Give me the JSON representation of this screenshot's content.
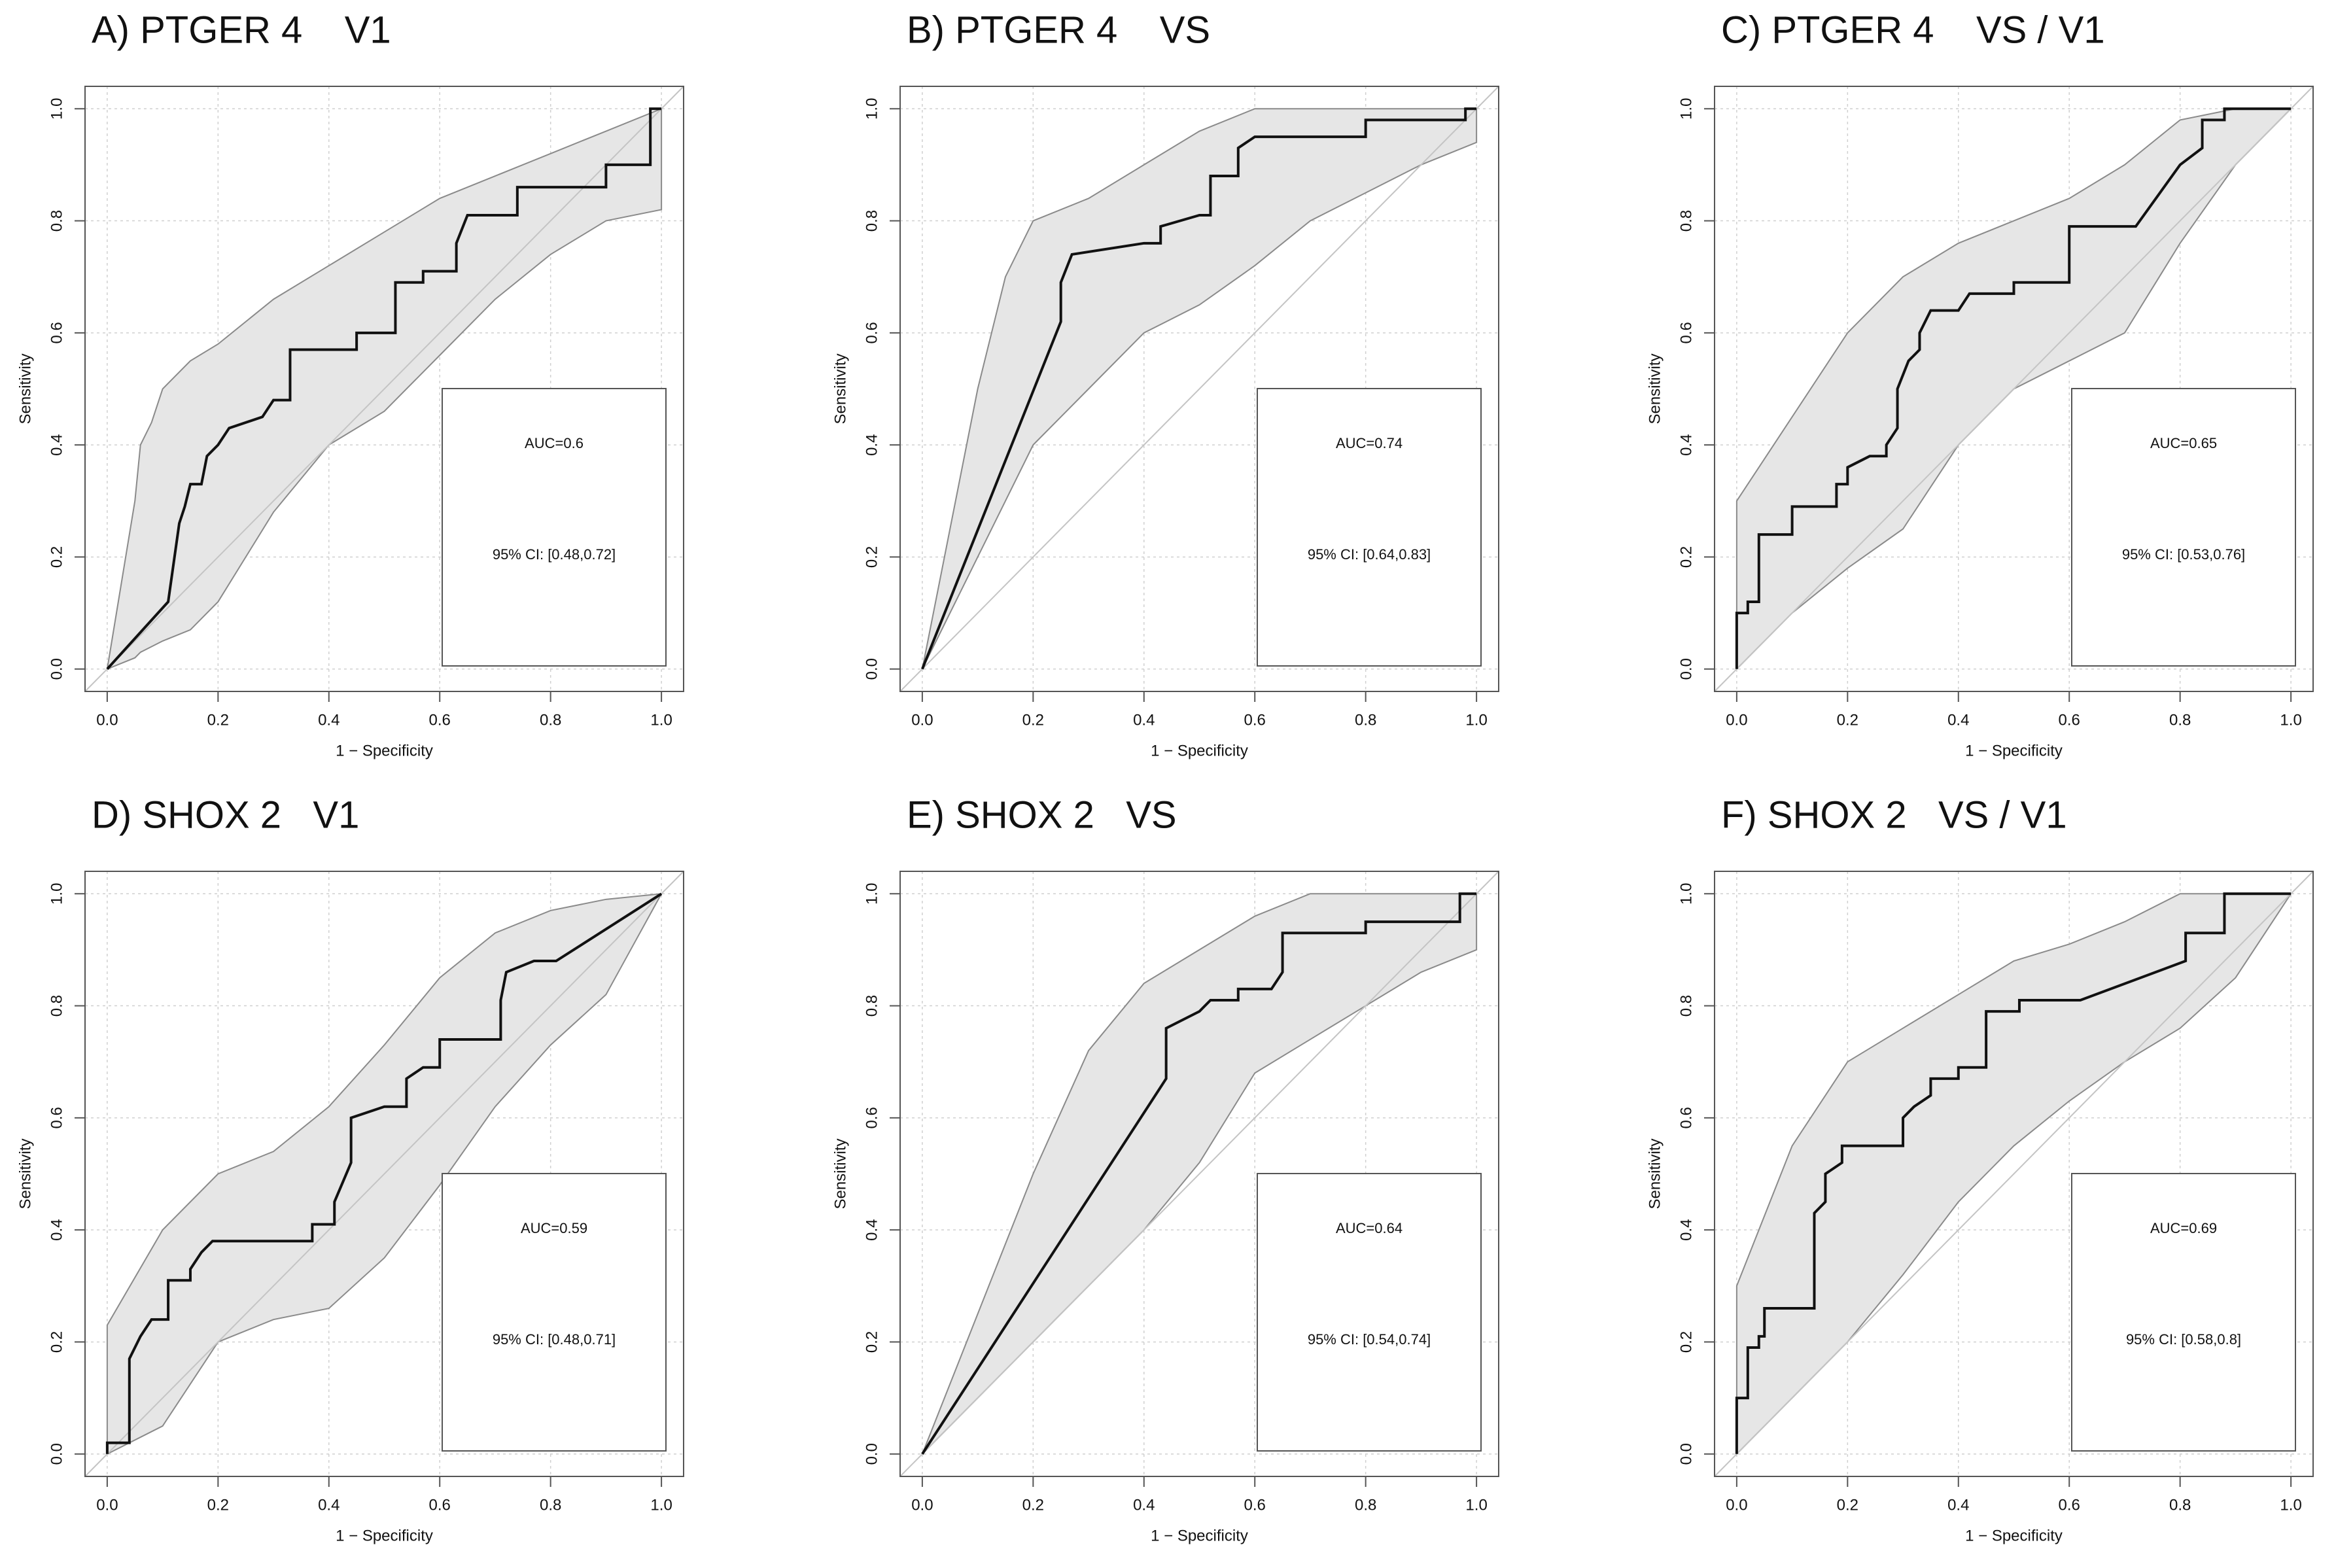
{
  "chart_data": [
    {
      "type": "line",
      "title": "A) PTGER 4    V1",
      "xlabel": "1 − Specificity",
      "ylabel": "Sensitivity",
      "annotations": [
        "AUC=0.6",
        "95% CI: [0.48,0.72]"
      ],
      "xlim": [
        -0.04,
        1.04
      ],
      "ylim": [
        -0.04,
        1.04
      ],
      "xticks": [
        {
          "value": 0,
          "label": "0.0"
        },
        0.2,
        0.4,
        0.6,
        0.8,
        {
          "value": 1,
          "label": "1.0"
        }
      ],
      "yticks": [
        {
          "value": 0,
          "label": "0.0"
        },
        0.2,
        0.4,
        0.6,
        0.8,
        {
          "value": 1,
          "label": "1.0"
        }
      ],
      "grid": true,
      "band": {
        "color": "#e6e6e6",
        "x": [
          0,
          0.05,
          0.06,
          0.08,
          0.1,
          0.15,
          0.2,
          0.3,
          0.4,
          0.5,
          0.6,
          0.7,
          0.8,
          0.9,
          1
        ],
        "upper": [
          0,
          0.3,
          0.4,
          0.44,
          0.5,
          0.55,
          0.58,
          0.66,
          0.72,
          0.78,
          0.84,
          0.88,
          0.92,
          0.96,
          1
        ],
        "lower": [
          0,
          0.02,
          0.03,
          0.04,
          0.05,
          0.07,
          0.12,
          0.28,
          0.4,
          0.46,
          0.56,
          0.66,
          0.74,
          0.8,
          0.82
        ]
      },
      "series": [
        {
          "color": "#111111",
          "x": [
            0,
            0.11,
            0.13,
            0.14,
            0.15,
            0.17,
            0.18,
            0.2,
            0.22,
            0.28,
            0.3,
            0.33,
            0.33,
            0.45,
            0.45,
            0.52,
            0.52,
            0.57,
            0.57,
            0.63,
            0.63,
            0.65,
            0.74,
            0.74,
            0.9,
            0.9,
            0.98,
            0.98,
            1
          ],
          "values": [
            0,
            0.12,
            0.26,
            0.29,
            0.33,
            0.33,
            0.38,
            0.4,
            0.43,
            0.45,
            0.48,
            0.48,
            0.57,
            0.57,
            0.6,
            0.6,
            0.69,
            0.69,
            0.71,
            0.71,
            0.76,
            0.81,
            0.81,
            0.86,
            0.86,
            0.9,
            0.9,
            1,
            1
          ]
        }
      ]
    },
    {
      "type": "line",
      "title": "B) PTGER 4    VS",
      "xlabel": "1 − Specificity",
      "ylabel": "Sensitivity",
      "annotations": [
        "AUC=0.74",
        "95% CI: [0.64,0.83]"
      ],
      "xlim": [
        -0.04,
        1.04
      ],
      "ylim": [
        -0.04,
        1.04
      ],
      "xticks": [
        {
          "value": 0,
          "label": "0.0"
        },
        0.2,
        0.4,
        0.6,
        0.8,
        {
          "value": 1,
          "label": "1.0"
        }
      ],
      "yticks": [
        {
          "value": 0,
          "label": "0.0"
        },
        0.2,
        0.4,
        0.6,
        0.8,
        {
          "value": 1,
          "label": "1.0"
        }
      ],
      "grid": true,
      "band": {
        "color": "#e6e6e6",
        "x": [
          0,
          0.1,
          0.15,
          0.2,
          0.3,
          0.4,
          0.5,
          0.6,
          0.7,
          0.8,
          0.9,
          1
        ],
        "upper": [
          0,
          0.5,
          0.7,
          0.8,
          0.84,
          0.9,
          0.96,
          1,
          1,
          1,
          1,
          1
        ],
        "lower": [
          0,
          0.2,
          0.3,
          0.4,
          0.5,
          0.6,
          0.65,
          0.72,
          0.8,
          0.85,
          0.9,
          0.94
        ]
      },
      "series": [
        {
          "color": "#111111",
          "x": [
            0,
            0.25,
            0.25,
            0.27,
            0.4,
            0.43,
            0.43,
            0.5,
            0.52,
            0.52,
            0.57,
            0.57,
            0.6,
            0.8,
            0.8,
            0.98,
            0.98,
            1
          ],
          "values": [
            0,
            0.62,
            0.69,
            0.74,
            0.76,
            0.76,
            0.79,
            0.81,
            0.81,
            0.88,
            0.88,
            0.93,
            0.95,
            0.95,
            0.98,
            0.98,
            1,
            1
          ]
        }
      ]
    },
    {
      "type": "line",
      "title": "C) PTGER 4    VS / V1",
      "xlabel": "1 − Specificity",
      "ylabel": "Sensitivity",
      "annotations": [
        "AUC=0.65",
        "95% CI: [0.53,0.76]"
      ],
      "xlim": [
        -0.04,
        1.04
      ],
      "ylim": [
        -0.04,
        1.04
      ],
      "xticks": [
        {
          "value": 0,
          "label": "0.0"
        },
        0.2,
        0.4,
        0.6,
        0.8,
        {
          "value": 1,
          "label": "1.0"
        }
      ],
      "yticks": [
        {
          "value": 0,
          "label": "0.0"
        },
        0.2,
        0.4,
        0.6,
        0.8,
        {
          "value": 1,
          "label": "1.0"
        }
      ],
      "grid": true,
      "band": {
        "color": "#e6e6e6",
        "x": [
          0,
          0.1,
          0.2,
          0.3,
          0.4,
          0.5,
          0.6,
          0.7,
          0.8,
          0.9,
          1
        ],
        "upper": [
          0.3,
          0.45,
          0.6,
          0.7,
          0.76,
          0.8,
          0.84,
          0.9,
          0.98,
          1,
          1
        ],
        "lower": [
          0,
          0.1,
          0.18,
          0.25,
          0.4,
          0.5,
          0.55,
          0.6,
          0.76,
          0.9,
          1
        ]
      },
      "series": [
        {
          "color": "#111111",
          "x": [
            0,
            0,
            0.02,
            0.02,
            0.04,
            0.04,
            0.1,
            0.1,
            0.18,
            0.18,
            0.2,
            0.2,
            0.24,
            0.27,
            0.27,
            0.29,
            0.29,
            0.31,
            0.33,
            0.33,
            0.35,
            0.4,
            0.42,
            0.5,
            0.5,
            0.6,
            0.6,
            0.72,
            0.8,
            0.84,
            0.84,
            0.88,
            0.88,
            1
          ],
          "values": [
            0,
            0.1,
            0.1,
            0.12,
            0.12,
            0.24,
            0.24,
            0.29,
            0.29,
            0.33,
            0.33,
            0.36,
            0.38,
            0.38,
            0.4,
            0.43,
            0.5,
            0.55,
            0.57,
            0.6,
            0.64,
            0.64,
            0.67,
            0.67,
            0.69,
            0.69,
            0.79,
            0.79,
            0.9,
            0.93,
            0.98,
            0.98,
            1,
            1
          ]
        }
      ]
    },
    {
      "type": "line",
      "title": "D) SHOX 2   V1",
      "xlabel": "1 − Specificity",
      "ylabel": "Sensitivity",
      "annotations": [
        "AUC=0.59",
        "95% CI: [0.48,0.71]"
      ],
      "xlim": [
        -0.04,
        1.04
      ],
      "ylim": [
        -0.04,
        1.04
      ],
      "xticks": [
        {
          "value": 0,
          "label": "0.0"
        },
        0.2,
        0.4,
        0.6,
        0.8,
        {
          "value": 1,
          "label": "1.0"
        }
      ],
      "yticks": [
        {
          "value": 0,
          "label": "0.0"
        },
        0.2,
        0.4,
        0.6,
        0.8,
        {
          "value": 1,
          "label": "1.0"
        }
      ],
      "grid": true,
      "band": {
        "color": "#e6e6e6",
        "x": [
          0,
          0.1,
          0.2,
          0.3,
          0.4,
          0.5,
          0.6,
          0.7,
          0.8,
          0.9,
          1
        ],
        "upper": [
          0.23,
          0.4,
          0.5,
          0.54,
          0.62,
          0.73,
          0.85,
          0.93,
          0.97,
          0.99,
          1
        ],
        "lower": [
          0,
          0.05,
          0.2,
          0.24,
          0.26,
          0.35,
          0.48,
          0.62,
          0.73,
          0.82,
          1
        ]
      },
      "series": [
        {
          "color": "#111111",
          "x": [
            0,
            0,
            0.04,
            0.04,
            0.06,
            0.08,
            0.11,
            0.11,
            0.15,
            0.15,
            0.17,
            0.19,
            0.37,
            0.37,
            0.41,
            0.41,
            0.44,
            0.44,
            0.5,
            0.54,
            0.54,
            0.57,
            0.6,
            0.6,
            0.71,
            0.71,
            0.72,
            0.77,
            0.81,
            1
          ],
          "values": [
            0,
            0.02,
            0.02,
            0.17,
            0.21,
            0.24,
            0.24,
            0.31,
            0.31,
            0.33,
            0.36,
            0.38,
            0.38,
            0.41,
            0.41,
            0.45,
            0.52,
            0.6,
            0.62,
            0.62,
            0.67,
            0.69,
            0.69,
            0.74,
            0.74,
            0.81,
            0.86,
            0.88,
            0.88,
            1
          ]
        }
      ]
    },
    {
      "type": "line",
      "title": "E) SHOX 2   VS",
      "xlabel": "1 − Specificity",
      "ylabel": "Sensitivity",
      "annotations": [
        "AUC=0.64",
        "95% CI: [0.54,0.74]"
      ],
      "xlim": [
        -0.04,
        1.04
      ],
      "ylim": [
        -0.04,
        1.04
      ],
      "xticks": [
        {
          "value": 0,
          "label": "0.0"
        },
        0.2,
        0.4,
        0.6,
        0.8,
        {
          "value": 1,
          "label": "1.0"
        }
      ],
      "yticks": [
        {
          "value": 0,
          "label": "0.0"
        },
        0.2,
        0.4,
        0.6,
        0.8,
        {
          "value": 1,
          "label": "1.0"
        }
      ],
      "grid": true,
      "band": {
        "color": "#e6e6e6",
        "x": [
          0,
          0.1,
          0.2,
          0.3,
          0.4,
          0.5,
          0.6,
          0.7,
          0.8,
          0.9,
          1
        ],
        "upper": [
          0,
          0.25,
          0.5,
          0.72,
          0.84,
          0.9,
          0.96,
          1,
          1,
          1,
          1
        ],
        "lower": [
          0,
          0.1,
          0.2,
          0.3,
          0.4,
          0.52,
          0.68,
          0.74,
          0.8,
          0.86,
          0.9
        ]
      },
      "series": [
        {
          "color": "#111111",
          "x": [
            0,
            0.44,
            0.44,
            0.5,
            0.52,
            0.57,
            0.57,
            0.63,
            0.65,
            0.65,
            0.8,
            0.8,
            0.97,
            0.97,
            1
          ],
          "values": [
            0,
            0.67,
            0.76,
            0.79,
            0.81,
            0.81,
            0.83,
            0.83,
            0.86,
            0.93,
            0.93,
            0.95,
            0.95,
            1,
            1
          ]
        }
      ]
    },
    {
      "type": "line",
      "title": "F) SHOX 2   VS / V1",
      "xlabel": "1 − Specificity",
      "ylabel": "Sensitivity",
      "annotations": [
        "AUC=0.69",
        "95% CI: [0.58,0.8]"
      ],
      "xlim": [
        -0.04,
        1.04
      ],
      "ylim": [
        -0.04,
        1.04
      ],
      "xticks": [
        {
          "value": 0,
          "label": "0.0"
        },
        0.2,
        0.4,
        0.6,
        0.8,
        {
          "value": 1,
          "label": "1.0"
        }
      ],
      "yticks": [
        {
          "value": 0,
          "label": "0.0"
        },
        0.2,
        0.4,
        0.6,
        0.8,
        {
          "value": 1,
          "label": "1.0"
        }
      ],
      "grid": true,
      "band": {
        "color": "#e6e6e6",
        "x": [
          0,
          0.1,
          0.2,
          0.3,
          0.4,
          0.5,
          0.6,
          0.7,
          0.8,
          0.9,
          1
        ],
        "upper": [
          0.3,
          0.55,
          0.7,
          0.76,
          0.82,
          0.88,
          0.91,
          0.95,
          1,
          1,
          1
        ],
        "lower": [
          0,
          0.1,
          0.2,
          0.32,
          0.45,
          0.55,
          0.63,
          0.7,
          0.76,
          0.85,
          1
        ]
      },
      "series": [
        {
          "color": "#111111",
          "x": [
            0,
            0,
            0.02,
            0.02,
            0.04,
            0.04,
            0.05,
            0.05,
            0.14,
            0.14,
            0.16,
            0.16,
            0.19,
            0.19,
            0.3,
            0.3,
            0.32,
            0.35,
            0.35,
            0.4,
            0.4,
            0.45,
            0.45,
            0.51,
            0.51,
            0.62,
            0.81,
            0.81,
            0.88,
            0.88,
            1
          ],
          "values": [
            0,
            0.1,
            0.1,
            0.19,
            0.19,
            0.21,
            0.21,
            0.26,
            0.26,
            0.43,
            0.45,
            0.5,
            0.52,
            0.55,
            0.55,
            0.6,
            0.62,
            0.64,
            0.67,
            0.67,
            0.69,
            0.69,
            0.79,
            0.79,
            0.81,
            0.81,
            0.88,
            0.93,
            0.93,
            1,
            1
          ]
        }
      ]
    }
  ]
}
